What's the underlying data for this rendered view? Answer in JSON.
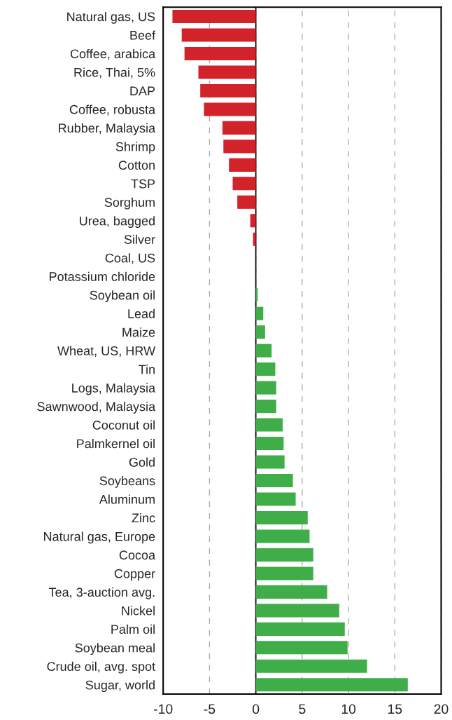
{
  "chart_data": {
    "type": "bar",
    "orientation": "horizontal",
    "categories": [
      "Natural gas, US",
      "Beef",
      "Coffee, arabica",
      "Rice, Thai, 5%",
      "DAP",
      "Coffee, robusta",
      "Rubber, Malaysia",
      "Shrimp",
      "Cotton",
      "TSP",
      "Sorghum",
      "Urea, bagged",
      "Silver",
      "Coal, US",
      "Potassium chloride",
      "Soybean oil",
      "Lead",
      "Maize",
      "Wheat, US, HRW",
      "Tin",
      "Logs, Malaysia",
      "Sawnwood, Malaysia",
      "Coconut oil",
      "Palmkernel oil",
      "Gold",
      "Soybeans",
      "Aluminum",
      "Zinc",
      "Natural gas, Europe",
      "Cocoa",
      "Copper",
      "Tea, 3-auction avg.",
      "Nickel",
      "Palm oil",
      "Soybean meal",
      "Crude oil, avg. spot",
      "Sugar, world"
    ],
    "values": [
      -9.0,
      -8.0,
      -7.7,
      -6.2,
      -6.0,
      -5.6,
      -3.6,
      -3.5,
      -2.9,
      -2.5,
      -2.0,
      -0.6,
      -0.3,
      0,
      0,
      0.2,
      0.8,
      1.0,
      1.7,
      2.1,
      2.2,
      2.2,
      2.9,
      3.0,
      3.1,
      4.0,
      4.3,
      5.6,
      5.8,
      6.2,
      6.2,
      7.7,
      9.0,
      9.6,
      9.9,
      12.0,
      16.4
    ],
    "colors": [
      "#d2232a",
      "#d2232a",
      "#d2232a",
      "#d2232a",
      "#d2232a",
      "#d2232a",
      "#d2232a",
      "#d2232a",
      "#d2232a",
      "#d2232a",
      "#d2232a",
      "#d2232a",
      "#d2232a",
      null,
      null,
      "#3fae49",
      "#3fae49",
      "#3fae49",
      "#3fae49",
      "#3fae49",
      "#3fae49",
      "#3fae49",
      "#3fae49",
      "#3fae49",
      "#3fae49",
      "#3fae49",
      "#3fae49",
      "#3fae49",
      "#3fae49",
      "#3fae49",
      "#3fae49",
      "#3fae49",
      "#3fae49",
      "#3fae49",
      "#3fae49",
      "#3fae49",
      "#3fae49"
    ],
    "xlim": [
      -10,
      20
    ],
    "xticks": [
      -10,
      -5,
      0,
      5,
      10,
      15,
      20
    ],
    "grid": "x",
    "line_style": "dashed",
    "ref_lines": [
      {
        "axis": "x",
        "value": 0,
        "color": "#000000",
        "line_style": "solid"
      }
    ]
  }
}
